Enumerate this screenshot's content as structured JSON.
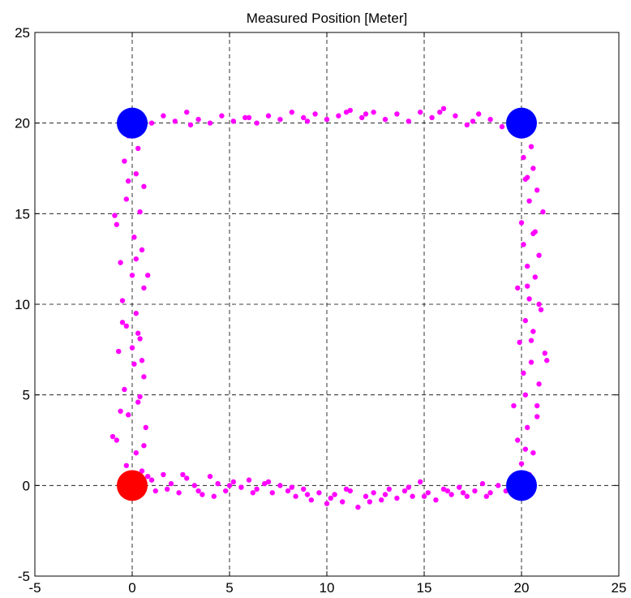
{
  "chart_data": {
    "type": "scatter",
    "title": "Measured Position [Meter]",
    "xlabel": "",
    "ylabel": "",
    "xlim": [
      -5,
      25
    ],
    "ylim": [
      -5,
      25
    ],
    "x_ticks": [
      -5,
      0,
      5,
      10,
      15,
      20,
      25
    ],
    "y_ticks": [
      -5,
      0,
      5,
      10,
      15,
      20,
      25
    ],
    "x_tick_labels": [
      "-5",
      "0",
      "5",
      "10",
      "15",
      "20",
      "25"
    ],
    "y_tick_labels": [
      "-5",
      "0",
      "5",
      "10",
      "15",
      "20",
      "25"
    ],
    "grid": true,
    "grid_style": "dashed",
    "series": [
      {
        "color": "#ff00ff",
        "marker": "small-dot",
        "points": [
          [
            0.3,
            0.2
          ],
          [
            0.8,
            0.5
          ],
          [
            1.2,
            -0.3
          ],
          [
            1.6,
            0.6
          ],
          [
            2.0,
            0.1
          ],
          [
            2.4,
            -0.4
          ],
          [
            2.8,
            0.4
          ],
          [
            3.2,
            0.0
          ],
          [
            3.6,
            -0.5
          ],
          [
            4.0,
            0.5
          ],
          [
            4.4,
            0.1
          ],
          [
            4.8,
            -0.3
          ],
          [
            5.2,
            0.2
          ],
          [
            5.6,
            -0.1
          ],
          [
            6.0,
            0.3
          ],
          [
            6.4,
            -0.2
          ],
          [
            6.8,
            0.1
          ],
          [
            7.2,
            -0.4
          ],
          [
            7.6,
            0.0
          ],
          [
            8.0,
            -0.3
          ],
          [
            8.4,
            -0.6
          ],
          [
            8.8,
            -0.2
          ],
          [
            9.2,
            -0.8
          ],
          [
            9.6,
            -0.4
          ],
          [
            10.0,
            -1.0
          ],
          [
            10.4,
            -0.5
          ],
          [
            10.8,
            -0.9
          ],
          [
            11.2,
            -0.3
          ],
          [
            11.6,
            -1.2
          ],
          [
            12.0,
            -0.6
          ],
          [
            12.4,
            -0.4
          ],
          [
            12.8,
            -0.8
          ],
          [
            13.2,
            -0.2
          ],
          [
            13.6,
            -0.7
          ],
          [
            14.0,
            -0.3
          ],
          [
            14.4,
            -0.6
          ],
          [
            14.8,
            0.2
          ],
          [
            15.2,
            -0.4
          ],
          [
            15.6,
            -0.8
          ],
          [
            16.0,
            -0.2
          ],
          [
            16.4,
            -0.5
          ],
          [
            16.8,
            -0.1
          ],
          [
            17.2,
            -0.6
          ],
          [
            17.6,
            -0.3
          ],
          [
            18.0,
            0.1
          ],
          [
            18.4,
            -0.4
          ],
          [
            18.8,
            0.0
          ],
          [
            19.2,
            -0.3
          ],
          [
            19.6,
            0.2
          ],
          [
            20.0,
            -0.1
          ],
          [
            0.5,
            0.8
          ],
          [
            1.0,
            0.3
          ],
          [
            1.8,
            -0.2
          ],
          [
            2.6,
            0.6
          ],
          [
            3.4,
            -0.3
          ],
          [
            4.2,
            -0.6
          ],
          [
            5.0,
            0.0
          ],
          [
            6.2,
            -0.4
          ],
          [
            7.0,
            0.2
          ],
          [
            8.2,
            -0.1
          ],
          [
            9.0,
            -0.5
          ],
          [
            10.2,
            -0.7
          ],
          [
            11.0,
            -0.2
          ],
          [
            12.2,
            -0.9
          ],
          [
            13.0,
            -0.5
          ],
          [
            14.2,
            -0.1
          ],
          [
            15.0,
            -0.6
          ],
          [
            16.2,
            -0.3
          ],
          [
            17.0,
            -0.4
          ],
          [
            18.2,
            -0.6
          ],
          [
            20.4,
            0.6
          ],
          [
            20.0,
            1.2
          ],
          [
            20.6,
            1.8
          ],
          [
            19.8,
            2.5
          ],
          [
            20.3,
            3.2
          ],
          [
            20.8,
            3.8
          ],
          [
            19.6,
            4.4
          ],
          [
            20.2,
            5.0
          ],
          [
            20.9,
            5.6
          ],
          [
            20.1,
            6.2
          ],
          [
            20.5,
            6.8
          ],
          [
            21.2,
            7.3
          ],
          [
            19.9,
            7.9
          ],
          [
            20.6,
            8.5
          ],
          [
            20.2,
            9.1
          ],
          [
            21.0,
            9.7
          ],
          [
            20.4,
            10.3
          ],
          [
            19.8,
            10.9
          ],
          [
            20.7,
            11.5
          ],
          [
            20.3,
            12.1
          ],
          [
            20.9,
            12.7
          ],
          [
            20.1,
            13.3
          ],
          [
            20.6,
            13.9
          ],
          [
            20.0,
            14.5
          ],
          [
            21.1,
            15.1
          ],
          [
            20.4,
            15.7
          ],
          [
            20.8,
            16.3
          ],
          [
            20.2,
            16.9
          ],
          [
            20.6,
            17.5
          ],
          [
            20.1,
            18.1
          ],
          [
            20.5,
            18.7
          ],
          [
            20.0,
            19.3
          ],
          [
            20.7,
            14.0
          ],
          [
            20.3,
            11.0
          ],
          [
            21.3,
            6.9
          ],
          [
            20.8,
            4.4
          ],
          [
            20.2,
            2.0
          ],
          [
            20.5,
            8.0
          ],
          [
            20.9,
            10.0
          ],
          [
            20.3,
            17.0
          ],
          [
            19.6,
            20.3
          ],
          [
            19.0,
            19.8
          ],
          [
            18.4,
            20.2
          ],
          [
            17.8,
            20.5
          ],
          [
            17.2,
            19.9
          ],
          [
            16.6,
            20.4
          ],
          [
            16.0,
            20.8
          ],
          [
            15.4,
            20.3
          ],
          [
            14.8,
            20.6
          ],
          [
            14.2,
            20.1
          ],
          [
            13.6,
            20.5
          ],
          [
            13.0,
            20.2
          ],
          [
            12.4,
            20.6
          ],
          [
            11.8,
            20.3
          ],
          [
            11.2,
            20.7
          ],
          [
            10.6,
            20.4
          ],
          [
            10.0,
            20.2
          ],
          [
            9.4,
            20.5
          ],
          [
            8.8,
            20.3
          ],
          [
            8.2,
            20.6
          ],
          [
            7.6,
            20.2
          ],
          [
            7.0,
            20.4
          ],
          [
            6.4,
            20.0
          ],
          [
            5.8,
            20.3
          ],
          [
            5.2,
            20.1
          ],
          [
            4.6,
            20.4
          ],
          [
            4.0,
            20.0
          ],
          [
            3.4,
            20.2
          ],
          [
            2.8,
            20.6
          ],
          [
            2.2,
            20.1
          ],
          [
            1.6,
            20.4
          ],
          [
            1.0,
            20.0
          ],
          [
            0.5,
            19.8
          ],
          [
            15.8,
            20.6
          ],
          [
            12.0,
            20.5
          ],
          [
            9.0,
            20.1
          ],
          [
            6.0,
            20.3
          ],
          [
            3.0,
            19.9
          ],
          [
            17.5,
            20.1
          ],
          [
            11.0,
            20.6
          ],
          [
            -0.2,
            19.3
          ],
          [
            0.3,
            18.6
          ],
          [
            -0.4,
            17.9
          ],
          [
            0.2,
            17.2
          ],
          [
            0.6,
            16.5
          ],
          [
            -0.3,
            15.8
          ],
          [
            0.4,
            15.1
          ],
          [
            -0.8,
            14.4
          ],
          [
            0.1,
            13.7
          ],
          [
            0.5,
            13.0
          ],
          [
            -0.6,
            12.3
          ],
          [
            0.0,
            11.6
          ],
          [
            0.6,
            10.9
          ],
          [
            -0.5,
            10.2
          ],
          [
            0.2,
            9.5
          ],
          [
            -0.3,
            8.8
          ],
          [
            0.4,
            8.1
          ],
          [
            -0.7,
            7.4
          ],
          [
            0.1,
            6.7
          ],
          [
            0.6,
            6.0
          ],
          [
            -0.4,
            5.3
          ],
          [
            0.3,
            4.6
          ],
          [
            -0.2,
            3.9
          ],
          [
            0.7,
            3.2
          ],
          [
            -0.8,
            2.5
          ],
          [
            0.2,
            1.8
          ],
          [
            -0.3,
            1.1
          ],
          [
            0.4,
            0.6
          ],
          [
            -1.0,
            2.7
          ],
          [
            0.3,
            8.4
          ],
          [
            -0.6,
            4.1
          ],
          [
            0.8,
            11.6
          ],
          [
            -0.9,
            14.9
          ],
          [
            0.5,
            6.9
          ],
          [
            -0.5,
            9.0
          ],
          [
            0.2,
            12.5
          ],
          [
            0.6,
            2.2
          ],
          [
            -0.2,
            16.8
          ],
          [
            0.4,
            4.9
          ],
          [
            0.0,
            7.6
          ]
        ]
      }
    ],
    "markers": [
      {
        "x": 0,
        "y": 0,
        "color": "#ff0000"
      },
      {
        "x": 0,
        "y": 20,
        "color": "#0000ff"
      },
      {
        "x": 20,
        "y": 20,
        "color": "#0000ff"
      },
      {
        "x": 20,
        "y": 0,
        "color": "#0000ff"
      }
    ]
  }
}
